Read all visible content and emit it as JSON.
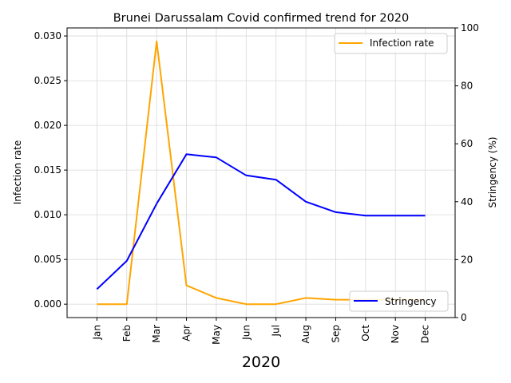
{
  "chart_data": {
    "type": "line",
    "title": "Brunei Darussalam Covid confirmed trend for 2020",
    "xlabel": "2020",
    "categories": [
      "Jan",
      "Feb",
      "Mar",
      "Apr",
      "May",
      "Jun",
      "Jul",
      "Aug",
      "Sep",
      "Oct",
      "Nov",
      "Dec"
    ],
    "grid": true,
    "axes": {
      "left": {
        "label": "Infection rate",
        "ylim": [
          -0.0015,
          0.0309
        ],
        "ticks": [
          "0.000",
          "0.005",
          "0.010",
          "0.015",
          "0.020",
          "0.025",
          "0.030"
        ]
      },
      "right": {
        "label": "Stringency (%)",
        "ylim": [
          0,
          100
        ],
        "ticks": [
          "0",
          "20",
          "40",
          "60",
          "80",
          "100"
        ]
      }
    },
    "series": [
      {
        "name": "Infection rate",
        "axis": "left",
        "color": "#ffa500",
        "values": [
          0.0,
          0.0,
          0.0294,
          0.0021,
          0.0007,
          0.0,
          0.0,
          0.0007,
          0.0005,
          0.0005,
          0.0005,
          0.0005
        ],
        "legend_position": "upper right"
      },
      {
        "name": "Stringency",
        "axis": "right",
        "color": "#0000ff",
        "values": [
          9.8,
          19.6,
          39.3,
          56.4,
          55.3,
          49.1,
          47.6,
          40.0,
          36.4,
          35.2,
          35.2,
          35.2
        ],
        "legend_position": "lower right"
      }
    ]
  }
}
